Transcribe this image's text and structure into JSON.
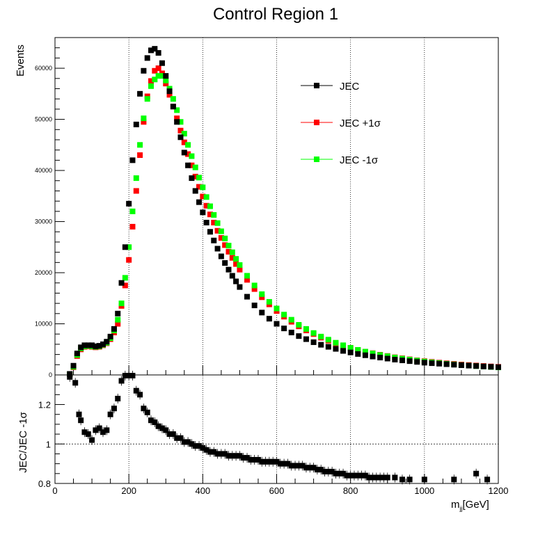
{
  "chart_data": [
    {
      "type": "scatter",
      "title": "Control Region 1",
      "ylabel": "Events",
      "xlim": [
        0,
        1200
      ],
      "ylim": [
        0,
        66000
      ],
      "xticks": [
        0,
        200,
        400,
        600,
        800,
        1000,
        1200
      ],
      "ytick_labels": [
        "0",
        "10000",
        "20000",
        "30000",
        "40000",
        "50000",
        "60000"
      ],
      "grid": "vertical dotted",
      "legend_position": "top-right",
      "series": [
        {
          "name": "JEC",
          "color": "#000000",
          "x": [
            40,
            50,
            60,
            70,
            80,
            90,
            100,
            110,
            120,
            130,
            140,
            150,
            160,
            170,
            180,
            190,
            200,
            210,
            220,
            230,
            240,
            250,
            260,
            270,
            280,
            290,
            300,
            310,
            320,
            330,
            340,
            350,
            360,
            370,
            380,
            390,
            400,
            410,
            420,
            430,
            440,
            450,
            460,
            470,
            480,
            490,
            500,
            520,
            540,
            560,
            580,
            600,
            620,
            640,
            660,
            680,
            700,
            720,
            740,
            760,
            780,
            800,
            820,
            840,
            860,
            880,
            900,
            920,
            940,
            960,
            980,
            1000,
            1020,
            1040,
            1060,
            1080,
            1100,
            1120,
            1140,
            1160,
            1180,
            1200
          ],
          "y": [
            200,
            1800,
            4200,
            5400,
            5800,
            5800,
            5800,
            5600,
            5700,
            6000,
            6500,
            7500,
            9000,
            12000,
            18000,
            25000,
            33500,
            42000,
            49000,
            55000,
            59500,
            62000,
            63500,
            63800,
            63000,
            61000,
            58500,
            55500,
            52500,
            49500,
            46500,
            43500,
            41000,
            38500,
            36000,
            33800,
            31800,
            29800,
            28000,
            26300,
            24700,
            23200,
            21900,
            20600,
            19400,
            18300,
            17200,
            15300,
            13600,
            12200,
            11000,
            10000,
            9100,
            8300,
            7600,
            7000,
            6400,
            5900,
            5500,
            5100,
            4700,
            4400,
            4100,
            3850,
            3600,
            3400,
            3200,
            3000,
            2850,
            2700,
            2550,
            2400,
            2300,
            2200,
            2100,
            2000,
            1900,
            1820,
            1740,
            1660,
            1590,
            1520
          ]
        },
        {
          "name": "JEC +1σ",
          "color": "#ff0000",
          "x": [
            40,
            50,
            60,
            70,
            80,
            90,
            100,
            110,
            120,
            130,
            140,
            150,
            160,
            170,
            180,
            190,
            200,
            210,
            220,
            230,
            240,
            250,
            260,
            270,
            280,
            290,
            300,
            310,
            320,
            330,
            340,
            350,
            360,
            370,
            380,
            390,
            400,
            410,
            420,
            430,
            440,
            450,
            460,
            470,
            480,
            490,
            500,
            520,
            540,
            560,
            580,
            600,
            620,
            640,
            660,
            680,
            700,
            720,
            740,
            760,
            780,
            800,
            820,
            840,
            860,
            880,
            900,
            920,
            940,
            960,
            980,
            1000,
            1020,
            1040,
            1060,
            1080,
            1100,
            1120,
            1140,
            1160,
            1180,
            1200
          ],
          "y": [
            100,
            1500,
            3700,
            5000,
            5500,
            5600,
            5500,
            5400,
            5500,
            5800,
            6200,
            7000,
            8300,
            10000,
            13500,
            17500,
            22500,
            29000,
            36000,
            43000,
            49500,
            54500,
            57500,
            59500,
            60000,
            59000,
            57000,
            54800,
            52500,
            50200,
            47800,
            45500,
            43200,
            41000,
            38800,
            36800,
            34900,
            33100,
            31400,
            29800,
            28200,
            26800,
            25400,
            24100,
            22900,
            21700,
            20600,
            18600,
            16800,
            15200,
            13800,
            12500,
            11400,
            10400,
            9500,
            8700,
            8000,
            7300,
            6700,
            6200,
            5700,
            5300,
            4900,
            4550,
            4250,
            3950,
            3700,
            3450,
            3250,
            3050,
            2850,
            2700,
            2550,
            2400,
            2270,
            2150,
            2040,
            1940,
            1840,
            1750,
            1660,
            1580
          ]
        },
        {
          "name": "JEC -1σ",
          "color": "#00ff00",
          "x": [
            40,
            50,
            60,
            70,
            80,
            90,
            100,
            110,
            120,
            130,
            140,
            150,
            160,
            170,
            180,
            190,
            200,
            210,
            220,
            230,
            240,
            250,
            260,
            270,
            280,
            290,
            300,
            310,
            320,
            330,
            340,
            350,
            360,
            370,
            380,
            390,
            400,
            410,
            420,
            430,
            440,
            450,
            460,
            470,
            480,
            490,
            500,
            520,
            540,
            560,
            580,
            600,
            620,
            640,
            660,
            680,
            700,
            720,
            740,
            760,
            780,
            800,
            820,
            840,
            860,
            880,
            900,
            920,
            940,
            960,
            980,
            1000,
            1020,
            1040,
            1060,
            1080,
            1100,
            1120,
            1140,
            1160,
            1180,
            1200
          ],
          "y": [
            150,
            1600,
            3900,
            5200,
            5600,
            5700,
            5600,
            5500,
            5600,
            5900,
            6300,
            7200,
            8700,
            10800,
            14000,
            19000,
            25000,
            32000,
            38500,
            45000,
            50200,
            54000,
            56500,
            57800,
            58500,
            58500,
            57600,
            56000,
            54000,
            51800,
            49500,
            47200,
            45000,
            42800,
            40600,
            38600,
            36700,
            34800,
            33000,
            31300,
            29700,
            28100,
            26700,
            25300,
            24000,
            22700,
            21500,
            19400,
            17500,
            15800,
            14300,
            13000,
            11800,
            10800,
            9800,
            9000,
            8200,
            7500,
            6900,
            6300,
            5800,
            5300,
            4900,
            4550,
            4200,
            3900,
            3650,
            3400,
            3180,
            2980,
            2800,
            2620,
            2460,
            2320,
            2180,
            2060,
            1940,
            1840,
            1740,
            1650,
            1560,
            1480
          ]
        }
      ]
    },
    {
      "type": "scatter",
      "ylabel": "JEC/JEC -1σ",
      "xlabel_main": "m",
      "xlabel_sub": "jj",
      "xlabel_unit": "[GeV]",
      "xlim": [
        0,
        1200
      ],
      "ylim": [
        0.8,
        1.35
      ],
      "xtick_labels": [
        "0",
        "200",
        "400",
        "600",
        "800",
        "1000",
        "1200"
      ],
      "ytick_labels": [
        "0.8",
        "1",
        "1.2"
      ],
      "reference_line": 1,
      "series": [
        {
          "name": "JEC/JEC -1σ",
          "color": "#000000",
          "x": [
            40,
            55,
            65,
            70,
            80,
            90,
            100,
            110,
            120,
            130,
            140,
            150,
            160,
            170,
            180,
            190,
            200,
            210,
            220,
            230,
            240,
            250,
            260,
            270,
            280,
            290,
            300,
            310,
            320,
            330,
            340,
            350,
            360,
            370,
            380,
            390,
            400,
            410,
            420,
            430,
            440,
            450,
            460,
            470,
            480,
            490,
            500,
            510,
            520,
            530,
            540,
            550,
            560,
            570,
            580,
            590,
            600,
            610,
            620,
            630,
            640,
            650,
            660,
            670,
            680,
            690,
            700,
            710,
            720,
            730,
            740,
            750,
            760,
            770,
            780,
            790,
            800,
            810,
            820,
            830,
            840,
            850,
            860,
            870,
            880,
            890,
            900,
            920,
            940,
            960,
            1000,
            1080,
            1140,
            1170
          ],
          "y": [
            1.34,
            1.31,
            1.15,
            1.12,
            1.06,
            1.05,
            1.02,
            1.07,
            1.08,
            1.06,
            1.07,
            1.15,
            1.18,
            1.23,
            1.32,
            1.36,
            1.36,
            1.36,
            1.27,
            1.25,
            1.18,
            1.16,
            1.12,
            1.11,
            1.09,
            1.08,
            1.07,
            1.05,
            1.05,
            1.03,
            1.03,
            1.01,
            1.01,
            1.0,
            0.99,
            0.99,
            0.98,
            0.97,
            0.96,
            0.96,
            0.95,
            0.95,
            0.95,
            0.94,
            0.94,
            0.94,
            0.94,
            0.93,
            0.93,
            0.92,
            0.92,
            0.92,
            0.91,
            0.91,
            0.91,
            0.91,
            0.91,
            0.9,
            0.9,
            0.9,
            0.89,
            0.89,
            0.89,
            0.89,
            0.88,
            0.88,
            0.88,
            0.87,
            0.87,
            0.86,
            0.86,
            0.86,
            0.85,
            0.85,
            0.85,
            0.84,
            0.84,
            0.84,
            0.84,
            0.84,
            0.84,
            0.83,
            0.83,
            0.83,
            0.83,
            0.83,
            0.83,
            0.83,
            0.82,
            0.82,
            0.82,
            0.82,
            0.85,
            0.82
          ]
        }
      ]
    }
  ]
}
